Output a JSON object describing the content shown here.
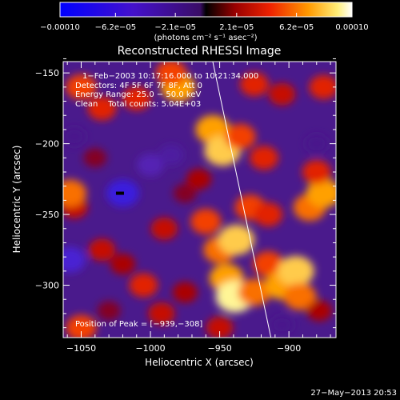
{
  "chart_data": {
    "type": "heatmap",
    "title": "Reconstructed RHESSI Image",
    "xlabel": "Heliocentric X (arcsec)",
    "ylabel": "Heliocentric Y (arcsec)",
    "xlim": [
      -1063,
      -866
    ],
    "ylim": [
      -337,
      -142
    ],
    "xticks": [
      -1050,
      -1000,
      -950,
      -900
    ],
    "xtick_labels": [
      "−1050",
      "−1000",
      "−950",
      "−900"
    ],
    "yticks": [
      -150,
      -200,
      -250,
      -300
    ],
    "ytick_labels": [
      "−150",
      "−200",
      "−250",
      "−300"
    ],
    "colorbar": {
      "range": [
        -0.0001,
        0.0001
      ],
      "ticks": [
        -0.0001,
        -6.2e-05,
        -2.1e-05,
        2.1e-05,
        6.2e-05,
        0.0001
      ],
      "tick_labels": [
        "−0.00010",
        "−6.2e−05",
        "−2.1e−05",
        "2.1e−05",
        "6.2e−05",
        "0.00010"
      ],
      "units": "(photons cm⁻² s⁻¹ asec⁻²)"
    },
    "info_lines": [
      "1−Feb−2003 10:17:16.000 to 10:21:34.000",
      "Detectors: 4F 5F 6F 7F 8F, Att 0",
      "Energy Range: 25.0 − 50.0 keV",
      "Clean    Total counts: 5.04E+03"
    ],
    "peak_label": "Position of Peak = [−939,−308]",
    "peak_position": [
      -939,
      -308
    ],
    "limb_line": [
      [
        -955,
        -142
      ],
      [
        -913,
        -337
      ]
    ],
    "blobs": [
      {
        "x": -1050,
        "y": -160,
        "v": 6e-05
      },
      {
        "x": -1035,
        "y": -175,
        "v": 5e-05
      },
      {
        "x": -1055,
        "y": -195,
        "v": -2e-05
      },
      {
        "x": -1055,
        "y": -245,
        "v": 4e-05
      },
      {
        "x": -1058,
        "y": -235,
        "v": 7e-05
      },
      {
        "x": -1050,
        "y": -330,
        "v": 6e-05
      },
      {
        "x": -1030,
        "y": -318,
        "v": 2e-05
      },
      {
        "x": -1010,
        "y": -168,
        "v": 5e-05
      },
      {
        "x": -980,
        "y": -160,
        "v": 8e-05
      },
      {
        "x": -985,
        "y": -150,
        "v": 6e-05
      },
      {
        "x": -955,
        "y": -190,
        "v": 8e-05
      },
      {
        "x": -948,
        "y": -205,
        "v": 9e-05
      },
      {
        "x": -935,
        "y": -195,
        "v": 6e-05
      },
      {
        "x": -925,
        "y": -158,
        "v": 5e-05
      },
      {
        "x": -905,
        "y": -165,
        "v": 4e-05
      },
      {
        "x": -875,
        "y": -160,
        "v": 5e-05
      },
      {
        "x": -918,
        "y": -210,
        "v": 5e-05
      },
      {
        "x": -880,
        "y": -200,
        "v": -2e-05
      },
      {
        "x": -1000,
        "y": -215,
        "v": -4e-05
      },
      {
        "x": -985,
        "y": -208,
        "v": -3e-05
      },
      {
        "x": -1020,
        "y": -235,
        "v": -7e-05
      },
      {
        "x": -1058,
        "y": -282,
        "v": -6e-05
      },
      {
        "x": -1035,
        "y": -275,
        "v": 4e-05
      },
      {
        "x": -1020,
        "y": -285,
        "v": 3e-05
      },
      {
        "x": -990,
        "y": -260,
        "v": 4e-05
      },
      {
        "x": -975,
        "y": -235,
        "v": 2e-05
      },
      {
        "x": -1005,
        "y": -300,
        "v": 5e-05
      },
      {
        "x": -992,
        "y": -320,
        "v": 4e-05
      },
      {
        "x": -975,
        "y": -305,
        "v": 3e-05
      },
      {
        "x": -960,
        "y": -255,
        "v": 6e-05
      },
      {
        "x": -950,
        "y": -275,
        "v": 7e-05
      },
      {
        "x": -938,
        "y": -268,
        "v": 9e-05
      },
      {
        "x": -945,
        "y": -295,
        "v": 8e-05
      },
      {
        "x": -939,
        "y": -308,
        "v": 0.0001
      },
      {
        "x": -925,
        "y": -305,
        "v": 7e-05
      },
      {
        "x": -950,
        "y": -330,
        "v": 4e-05
      },
      {
        "x": -928,
        "y": -245,
        "v": 6e-05
      },
      {
        "x": -915,
        "y": -250,
        "v": 5e-05
      },
      {
        "x": -915,
        "y": -285,
        "v": 6e-05
      },
      {
        "x": -905,
        "y": -300,
        "v": 8e-05
      },
      {
        "x": -895,
        "y": -290,
        "v": 9e-05
      },
      {
        "x": -892,
        "y": -308,
        "v": 7e-05
      },
      {
        "x": -885,
        "y": -245,
        "v": 7e-05
      },
      {
        "x": -875,
        "y": -235,
        "v": 8e-05
      },
      {
        "x": -880,
        "y": -220,
        "v": 5e-05
      },
      {
        "x": -905,
        "y": -328,
        "v": -2e-05
      },
      {
        "x": -878,
        "y": -318,
        "v": 3e-05
      },
      {
        "x": -965,
        "y": -225,
        "v": 3e-05
      },
      {
        "x": -1040,
        "y": -210,
        "v": 2e-05
      }
    ]
  },
  "footer": {
    "timestamp": "27−May−2013 20:53"
  }
}
